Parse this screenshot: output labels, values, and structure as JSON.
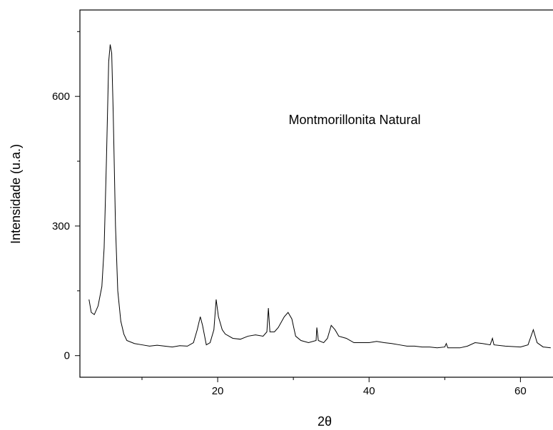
{
  "chart_data": {
    "type": "line",
    "annotation": "Montmorillonita Natural",
    "xlabel": "2θ",
    "ylabel": "Intensidade (u.a.)",
    "xlim": [
      1.8,
      64.3
    ],
    "ylim": [
      -50,
      800
    ],
    "xticks": [
      20,
      40,
      60
    ],
    "xminor_ticks": [
      10,
      30,
      50
    ],
    "yticks": [
      0,
      300,
      600
    ],
    "yminor_ticks": [
      150,
      450,
      750
    ],
    "series": [
      {
        "name": "Montmorillonita Natural",
        "color": "#000000",
        "x": [
          3.0,
          3.3,
          3.7,
          4.2,
          4.7,
          5.0,
          5.3,
          5.6,
          5.8,
          6.0,
          6.2,
          6.5,
          6.8,
          7.2,
          7.6,
          8.0,
          9,
          10,
          11,
          12,
          13,
          14,
          15,
          16,
          16.8,
          17.3,
          17.7,
          18.0,
          18.5,
          19.0,
          19.5,
          19.8,
          20.1,
          20.6,
          21,
          22,
          23,
          24,
          25,
          26,
          26.5,
          26.7,
          26.9,
          27.5,
          28,
          28.8,
          29.3,
          29.8,
          30.3,
          31,
          32,
          33,
          33.1,
          33.3,
          34,
          34.5,
          35.0,
          35.5,
          36,
          37,
          38,
          39,
          40,
          41,
          42,
          43,
          44,
          45,
          46,
          47,
          48,
          49,
          50,
          50.2,
          50.4,
          52,
          53,
          54,
          55,
          56,
          56.3,
          56.5,
          58,
          60,
          61,
          61.7,
          62.2,
          63,
          64
        ],
        "values": [
          130,
          100,
          95,
          115,
          160,
          250,
          450,
          680,
          720,
          700,
          560,
          300,
          150,
          80,
          50,
          35,
          28,
          25,
          22,
          24,
          22,
          20,
          23,
          22,
          30,
          60,
          90,
          70,
          25,
          30,
          60,
          130,
          90,
          60,
          50,
          40,
          38,
          45,
          48,
          45,
          55,
          110,
          55,
          55,
          65,
          90,
          100,
          85,
          45,
          35,
          30,
          35,
          65,
          35,
          30,
          40,
          70,
          60,
          45,
          40,
          30,
          30,
          30,
          33,
          30,
          28,
          25,
          22,
          22,
          20,
          20,
          18,
          20,
          28,
          18,
          18,
          22,
          30,
          28,
          25,
          40,
          25,
          22,
          20,
          25,
          60,
          30,
          20,
          18
        ]
      }
    ]
  }
}
